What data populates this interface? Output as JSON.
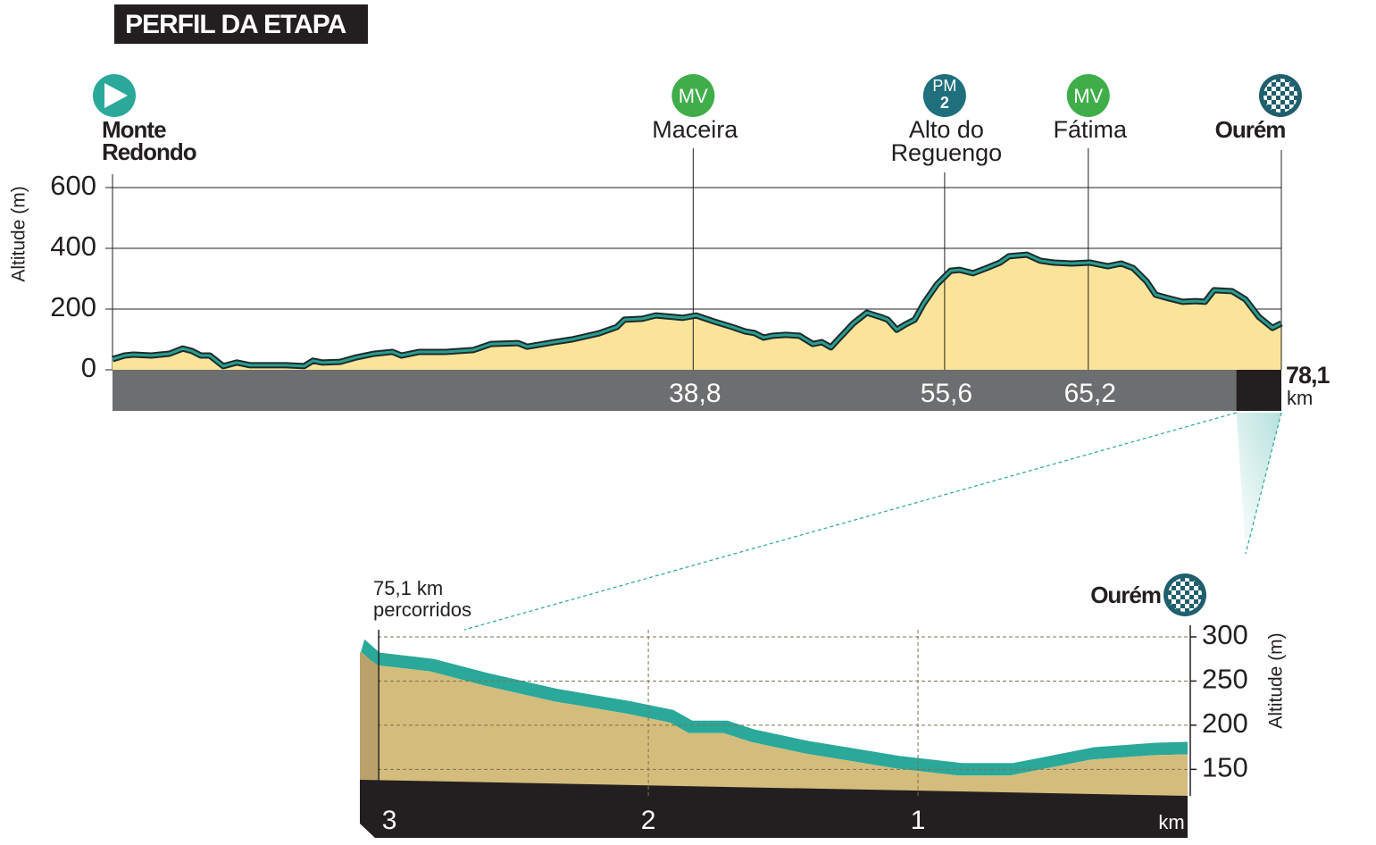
{
  "title": "PERFIL DA ETAPA",
  "chart_data": [
    {
      "type": "area",
      "y_label": "Altitude (m)",
      "x": [
        0,
        0.8,
        1.4,
        2.6,
        3.8,
        4.7,
        5.3,
        5.9,
        6.5,
        7.4,
        8.3,
        9.2,
        10.4,
        11.6,
        12.8,
        13.4,
        14.0,
        15.2,
        16.3,
        17.5,
        18.7,
        19.3,
        20.5,
        22.3,
        24.1,
        25.3,
        27.1,
        27.7,
        29.5,
        30.7,
        32.5,
        33.7,
        34.2,
        35.4,
        36.3,
        37.5,
        38.1,
        39.0,
        40.2,
        41.4,
        42.3,
        42.9,
        43.5,
        44.1,
        45.0,
        45.9,
        46.8,
        47.4,
        48.0,
        48.6,
        49.5,
        50.4,
        51.3,
        51.8,
        52.4,
        53.0,
        53.6,
        54.2,
        55.1,
        56.0,
        56.6,
        57.5,
        58.4,
        59.3,
        59.9,
        61.1,
        62.0,
        62.9,
        64.1,
        65.3,
        66.5,
        67.4,
        68.2,
        69.1,
        69.7,
        70.6,
        71.5,
        72.4,
        73.0,
        73.6,
        74.8,
        75.7,
        76.6,
        77.5,
        78.1
      ],
      "values": [
        35,
        47,
        50,
        47,
        53,
        70,
        62,
        47,
        47,
        12,
        24,
        15,
        15,
        15,
        12,
        30,
        24,
        26,
        41,
        53,
        59,
        47,
        59,
        59,
        65,
        85,
        88,
        76,
        91,
        100,
        120,
        141,
        165,
        168,
        179,
        174,
        171,
        179,
        159,
        141,
        126,
        121,
        106,
        112,
        115,
        112,
        85,
        91,
        74,
        106,
        153,
        188,
        174,
        165,
        132,
        150,
        165,
        218,
        282,
        326,
        329,
        318,
        335,
        353,
        374,
        379,
        359,
        353,
        350,
        353,
        341,
        350,
        335,
        291,
        247,
        235,
        224,
        226,
        224,
        262,
        259,
        232,
        174,
        138,
        153
      ],
      "color": "#fbe49a",
      "line_color": "#2a9d8f",
      "xlim": [
        0,
        78.1
      ],
      "ylim": [
        0,
        600
      ],
      "yticks": [
        0,
        200,
        400,
        600
      ],
      "grid": true,
      "start": [
        "Monte",
        "Redondo"
      ],
      "finish": "Ourém",
      "distance": {
        "value": 78.1,
        "label": "78,1"
      },
      "unit": "km",
      "points": [
        {
          "badge": [
            "MV"
          ],
          "name": [
            "Maceira"
          ],
          "km": {
            "value": 38.8,
            "label": "38,8"
          }
        },
        {
          "badge": [
            "PM",
            "2"
          ],
          "name": [
            "Alto do",
            "Reguengo"
          ],
          "km": {
            "value": 55.6,
            "label": "55,6"
          }
        },
        {
          "badge": [
            "MV"
          ],
          "name": [
            "Fátima"
          ],
          "km": {
            "value": 65.2,
            "label": "65,2"
          }
        }
      ],
      "zoom_from": {
        "value": 75.1,
        "label": "75,1 km"
      },
      "zoom_note": "percorridos"
    },
    {
      "type": "area3d",
      "y_label": "Altitude (m)",
      "finish": "Ourém",
      "x": [
        3.066,
        3.01,
        2.81,
        2.61,
        2.35,
        2.08,
        1.92,
        1.85,
        1.72,
        1.62,
        1.42,
        1.22,
        1.08,
        0.85,
        0.66,
        0.56,
        0.36,
        0.13,
        0
      ],
      "values": [
        283,
        268,
        261,
        245,
        227,
        213,
        203,
        191,
        191,
        181,
        168,
        158,
        151,
        143,
        143,
        149,
        161,
        166,
        167
      ],
      "color": "#d4bc7c",
      "top_color": "#2aa89a",
      "xlim": [
        3.07,
        0
      ],
      "ylim": [
        120,
        300
      ],
      "yticks": [
        150,
        200,
        250,
        300
      ],
      "xticks": [
        3,
        2,
        1
      ],
      "x_unit": "km",
      "grid": true
    }
  ]
}
